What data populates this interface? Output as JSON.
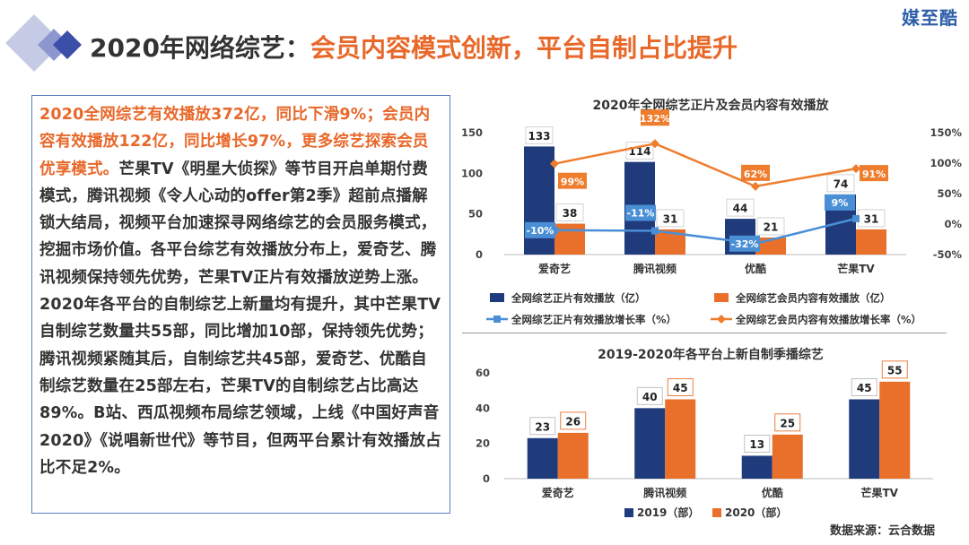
{
  "brand": "媒至酷",
  "headline": {
    "prefix": "2020年网络综艺：",
    "highlight": "会员内容模式创新，平台自制占比提升"
  },
  "summary": {
    "highlight": "2020全网综艺有效播放372亿，同比下滑9%；会员内容有效播放122亿，同比增长97%，更多综艺探索会员优享模式。",
    "body": "芒果TV《明星大侦探》等节目开启单期付费模式，腾讯视频《令人心动的offer第2季》超前点播解锁大结局，视频平台加速探寻网络综艺的会员服务模式，挖掘市场价值。各平台综艺有效播放分布上，爱奇艺、腾讯视频保持领先优势，芒果TV正片有效播放逆势上涨。2020年各平台的自制综艺上新量均有提升，其中芒果TV自制综艺数量共55部，同比增加10部，保持领先优势；腾讯视频紧随其后，自制综艺共45部，爱奇艺、优酷自制综艺数量在25部左右，芒果TV的自制综艺占比高达89%。B站、西瓜视频布局综艺领域，上线《中国好声音2020》《说唱新世代》等节目，但两平台累计有效播放占比不足2%。"
  },
  "source": "数据来源：云合数据",
  "colors": {
    "navy": "#1f3b7c",
    "orange": "#e8702a",
    "blue_line": "#4a8fd6",
    "orange_line": "#ef7d2e"
  },
  "chart_data": [
    {
      "type": "bar",
      "title": "2020年全网综艺正片及会员内容有效播放",
      "categories": [
        "爱奇艺",
        "腾讯视频",
        "优酷",
        "芒果TV"
      ],
      "ylim": [
        0,
        150
      ],
      "yticks": [
        "0",
        "50",
        "100",
        "150"
      ],
      "y2lim": [
        -50,
        150
      ],
      "y2ticks": [
        "-50%",
        "0%",
        "50%",
        "100%",
        "150%"
      ],
      "series": [
        {
          "name": "全网综艺正片有效播放（亿）",
          "type": "bar",
          "axis": "left",
          "values": [
            133,
            114,
            44,
            74
          ],
          "labels": [
            "133",
            "114",
            "44",
            "74"
          ]
        },
        {
          "name": "全网综艺会员内容有效播放（亿）",
          "type": "bar",
          "axis": "left",
          "values": [
            38,
            31,
            21,
            31
          ],
          "labels": [
            "38",
            "31",
            "21",
            "31"
          ]
        },
        {
          "name": "全网综艺正片有效播放增长率（%）",
          "type": "line",
          "axis": "right",
          "values": [
            -10,
            -11,
            -32,
            9
          ],
          "labels": [
            "-10%",
            "-11%",
            "-32%",
            "9%"
          ]
        },
        {
          "name": "全网综艺会员内容有效播放增长率（%）",
          "type": "line",
          "axis": "right",
          "values": [
            99,
            132,
            62,
            91
          ],
          "labels": [
            "99%",
            "132%",
            "62%",
            "91%"
          ]
        }
      ],
      "legend": "bottom"
    },
    {
      "type": "bar",
      "title": "2019-2020年各平台上新自制季播综艺",
      "categories": [
        "爱奇艺",
        "腾讯视频",
        "优酷",
        "芒果TV"
      ],
      "ylim": [
        0,
        60
      ],
      "yticks": [
        "0",
        "20",
        "40",
        "60"
      ],
      "series": [
        {
          "name": "2019（部）",
          "values": [
            23,
            40,
            13,
            45
          ],
          "labels": [
            "23",
            "40",
            "13",
            "45"
          ]
        },
        {
          "name": "2020（部）",
          "values": [
            26,
            45,
            25,
            55
          ],
          "labels": [
            "26",
            "45",
            "25",
            "55"
          ]
        }
      ],
      "legend": "bottom"
    }
  ]
}
